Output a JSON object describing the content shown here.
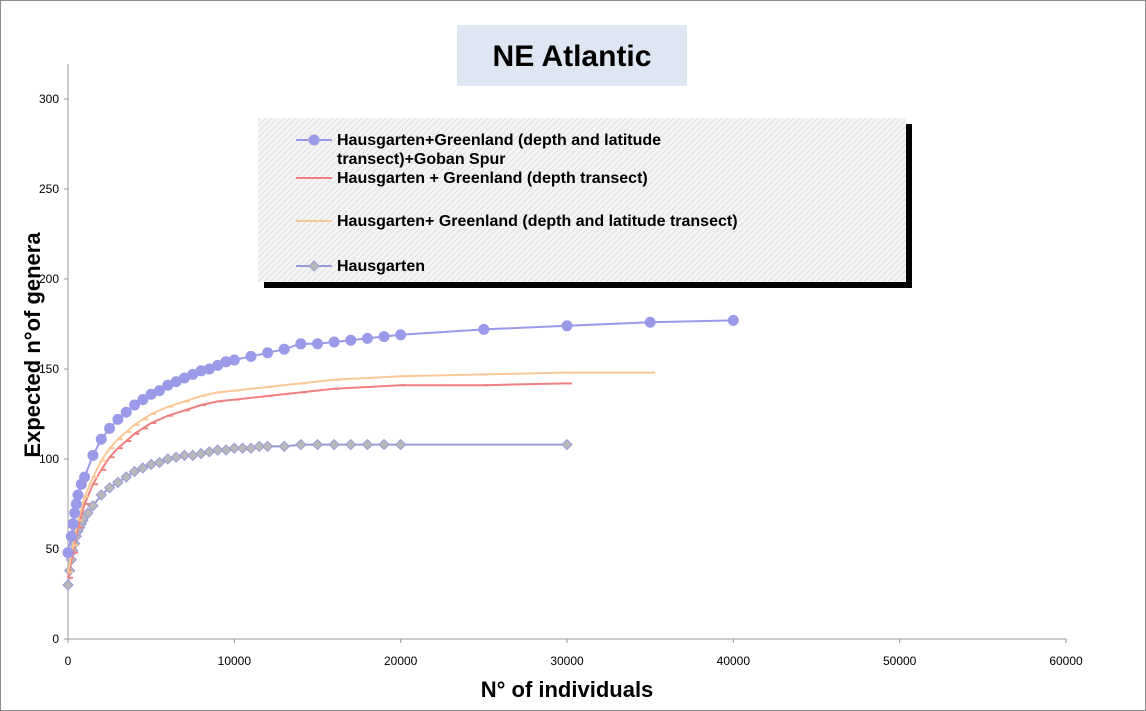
{
  "chart_data": {
    "type": "line",
    "title": "NE Atlantic",
    "xlabel": "N° of individuals",
    "ylabel": "Expected n°of genera",
    "xlim": [
      0,
      60000
    ],
    "ylim": [
      0,
      300
    ],
    "x_ticks": [
      "0",
      "10000",
      "20000",
      "30000",
      "40000",
      "50000",
      "60000"
    ],
    "y_ticks": [
      "0",
      "50",
      "100",
      "150",
      "200",
      "250",
      "300"
    ],
    "grid": false,
    "legend_position": "top-center",
    "series": [
      {
        "name": "Hausgarten+Greenland (depth and latitude transect)+Goban Spur",
        "color": "#9a9ae8",
        "marker": "circle",
        "points": [
          [
            0,
            48
          ],
          [
            200,
            57
          ],
          [
            300,
            64
          ],
          [
            400,
            70
          ],
          [
            500,
            75
          ],
          [
            600,
            80
          ],
          [
            800,
            86
          ],
          [
            1000,
            90
          ],
          [
            1500,
            102
          ],
          [
            2000,
            111
          ],
          [
            2500,
            117
          ],
          [
            3000,
            122
          ],
          [
            3500,
            126
          ],
          [
            4000,
            130
          ],
          [
            4500,
            133
          ],
          [
            5000,
            136
          ],
          [
            5500,
            138
          ],
          [
            6000,
            141
          ],
          [
            6500,
            143
          ],
          [
            7000,
            145
          ],
          [
            7500,
            147
          ],
          [
            8000,
            149
          ],
          [
            8500,
            150
          ],
          [
            9000,
            152
          ],
          [
            9500,
            154
          ],
          [
            10000,
            155
          ],
          [
            11000,
            157
          ],
          [
            12000,
            159
          ],
          [
            13000,
            161
          ],
          [
            14000,
            164
          ],
          [
            15000,
            164
          ],
          [
            16000,
            165
          ],
          [
            17000,
            166
          ],
          [
            18000,
            167
          ],
          [
            19000,
            168
          ],
          [
            20000,
            169
          ],
          [
            25000,
            172
          ],
          [
            30000,
            174
          ],
          [
            35000,
            176
          ],
          [
            40000,
            177
          ]
        ]
      },
      {
        "name": "Hausgarten + Greenland (depth transect)",
        "color": "#f08080",
        "marker": "dash",
        "points": [
          [
            0,
            34
          ],
          [
            300,
            48
          ],
          [
            600,
            62
          ],
          [
            1000,
            75
          ],
          [
            1500,
            86
          ],
          [
            2000,
            94
          ],
          [
            2500,
            101
          ],
          [
            3000,
            106
          ],
          [
            3500,
            110
          ],
          [
            4000,
            114
          ],
          [
            4500,
            117
          ],
          [
            5000,
            120
          ],
          [
            6000,
            124
          ],
          [
            7000,
            127
          ],
          [
            8000,
            130
          ],
          [
            9000,
            132
          ],
          [
            10000,
            133
          ],
          [
            12000,
            135
          ],
          [
            14000,
            137
          ],
          [
            16000,
            139
          ],
          [
            18000,
            140
          ],
          [
            20000,
            141
          ],
          [
            25000,
            141
          ],
          [
            30000,
            142
          ]
        ]
      },
      {
        "name": "Hausgarten+ Greenland (depth and latitude transect)",
        "color": "#fac896",
        "marker": "dash",
        "points": [
          [
            0,
            37
          ],
          [
            300,
            52
          ],
          [
            600,
            66
          ],
          [
            1000,
            79
          ],
          [
            1500,
            90
          ],
          [
            2000,
            99
          ],
          [
            2500,
            106
          ],
          [
            3000,
            111
          ],
          [
            3500,
            115
          ],
          [
            4000,
            119
          ],
          [
            4500,
            122
          ],
          [
            5000,
            125
          ],
          [
            6000,
            129
          ],
          [
            7000,
            132
          ],
          [
            8000,
            135
          ],
          [
            9000,
            137
          ],
          [
            10000,
            138
          ],
          [
            12000,
            140
          ],
          [
            14000,
            142
          ],
          [
            16000,
            144
          ],
          [
            18000,
            145
          ],
          [
            20000,
            146
          ],
          [
            25000,
            147
          ],
          [
            30000,
            148
          ],
          [
            35000,
            148
          ]
        ]
      },
      {
        "name": "Hausgarten",
        "color": "#9a9ad8",
        "marker": "diamond",
        "points": [
          [
            0,
            30
          ],
          [
            100,
            38
          ],
          [
            200,
            44
          ],
          [
            300,
            49
          ],
          [
            400,
            53
          ],
          [
            500,
            57
          ],
          [
            600,
            60
          ],
          [
            700,
            62
          ],
          [
            800,
            64
          ],
          [
            900,
            66
          ],
          [
            1000,
            68
          ],
          [
            1200,
            70
          ],
          [
            1500,
            74
          ],
          [
            2000,
            80
          ],
          [
            2500,
            84
          ],
          [
            3000,
            87
          ],
          [
            3500,
            90
          ],
          [
            4000,
            93
          ],
          [
            4500,
            95
          ],
          [
            5000,
            97
          ],
          [
            5500,
            98
          ],
          [
            6000,
            100
          ],
          [
            6500,
            101
          ],
          [
            7000,
            102
          ],
          [
            7500,
            102
          ],
          [
            8000,
            103
          ],
          [
            8500,
            104
          ],
          [
            9000,
            105
          ],
          [
            9500,
            105
          ],
          [
            10000,
            106
          ],
          [
            10500,
            106
          ],
          [
            11000,
            106
          ],
          [
            11500,
            107
          ],
          [
            12000,
            107
          ],
          [
            13000,
            107
          ],
          [
            14000,
            108
          ],
          [
            15000,
            108
          ],
          [
            16000,
            108
          ],
          [
            17000,
            108
          ],
          [
            18000,
            108
          ],
          [
            19000,
            108
          ],
          [
            20000,
            108
          ],
          [
            30000,
            108
          ]
        ]
      }
    ],
    "legend_lines": [
      [
        "Hausgarten+Greenland (depth and latitude",
        "transect)+Goban Spur"
      ],
      [
        "Hausgarten + Greenland (depth transect)"
      ],
      [
        "Hausgarten+ Greenland (depth and latitude transect)"
      ],
      [
        "Hausgarten"
      ]
    ]
  }
}
